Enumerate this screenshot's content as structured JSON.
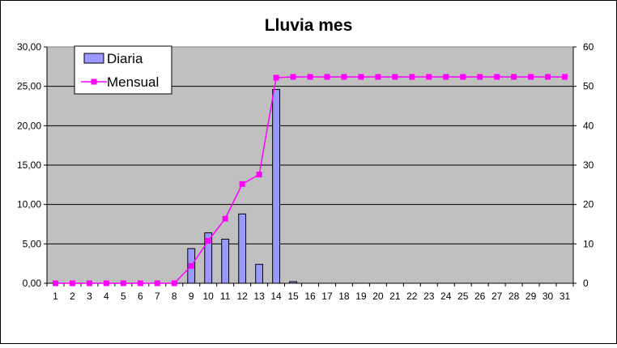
{
  "chart_data": {
    "type": "bar+line",
    "title": "Lluvia mes",
    "categories": [
      "1",
      "2",
      "3",
      "4",
      "5",
      "6",
      "7",
      "8",
      "9",
      "10",
      "11",
      "12",
      "13",
      "14",
      "15",
      "16",
      "17",
      "18",
      "19",
      "20",
      "21",
      "22",
      "23",
      "24",
      "25",
      "26",
      "27",
      "28",
      "29",
      "30",
      "31"
    ],
    "ylim_left": [
      0,
      30
    ],
    "yticks_left": [
      "0,00",
      "5,00",
      "10,00",
      "15,00",
      "20,00",
      "25,00",
      "30,00"
    ],
    "ylim_right": [
      0,
      60
    ],
    "yticks_right": [
      "0",
      "10",
      "20",
      "30",
      "40",
      "50",
      "60"
    ],
    "grid": true,
    "legend_placement": "top-left",
    "series": [
      {
        "name": "Diaria",
        "type": "bar",
        "axis": "left",
        "color": "#9999ff",
        "values": [
          0,
          0,
          0,
          0,
          0,
          0,
          0,
          0,
          4.4,
          6.4,
          5.6,
          8.8,
          2.4,
          24.6,
          0.2,
          0,
          0,
          0,
          0,
          0,
          0,
          0,
          0,
          0,
          0,
          0,
          0,
          0,
          0,
          0,
          0
        ]
      },
      {
        "name": "Mensual",
        "type": "line",
        "axis": "right",
        "color": "#ff00ff",
        "values": [
          0,
          0,
          0,
          0,
          0,
          0,
          0,
          0,
          4.4,
          10.8,
          16.4,
          25.2,
          27.6,
          52.2,
          52.4,
          52.4,
          52.4,
          52.4,
          52.4,
          52.4,
          52.4,
          52.4,
          52.4,
          52.4,
          52.4,
          52.4,
          52.4,
          52.4,
          52.4,
          52.4,
          52.4
        ]
      }
    ]
  },
  "colors": {
    "plot_background": "#c0c0c0",
    "gridline": "#000000",
    "bar_fill": "#9999ff",
    "line": "#ff00ff"
  }
}
